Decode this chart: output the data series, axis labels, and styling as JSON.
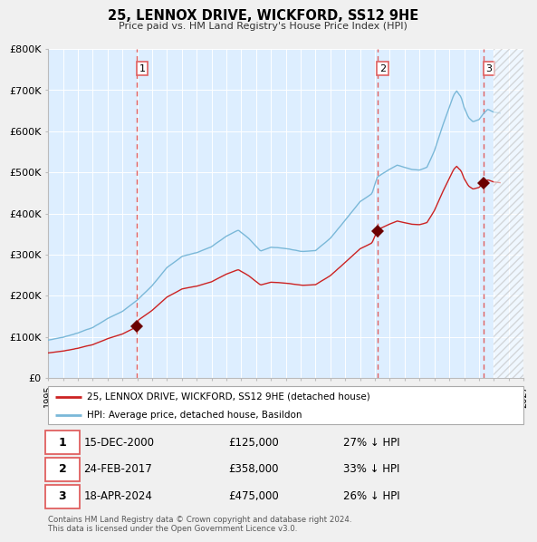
{
  "title": "25, LENNOX DRIVE, WICKFORD, SS12 9HE",
  "subtitle": "Price paid vs. HM Land Registry's House Price Index (HPI)",
  "xlim": [
    1995.0,
    2027.0
  ],
  "ylim": [
    0,
    800000
  ],
  "yticks": [
    0,
    100000,
    200000,
    300000,
    400000,
    500000,
    600000,
    700000,
    800000
  ],
  "ytick_labels": [
    "£0",
    "£100K",
    "£200K",
    "£300K",
    "£400K",
    "£500K",
    "£600K",
    "£700K",
    "£800K"
  ],
  "hpi_color": "#7ab8d8",
  "price_color": "#cc2222",
  "sale_marker_color": "#6b0000",
  "dashed_line_color": "#e06060",
  "bg_color": "#ddeeff",
  "plot_bg": "#ddeeff",
  "grid_color": "#ffffff",
  "fig_bg": "#f0f0f0",
  "sale_events": [
    {
      "label": "1",
      "date_str": "15-DEC-2000",
      "year": 2000.96,
      "price": 125000,
      "hpi_pct": "27% ↓ HPI"
    },
    {
      "label": "2",
      "date_str": "24-FEB-2017",
      "year": 2017.15,
      "price": 358000,
      "hpi_pct": "33% ↓ HPI"
    },
    {
      "label": "3",
      "date_str": "18-APR-2024",
      "year": 2024.3,
      "price": 475000,
      "hpi_pct": "26% ↓ HPI"
    }
  ],
  "legend_line1": "25, LENNOX DRIVE, WICKFORD, SS12 9HE (detached house)",
  "legend_line2": "HPI: Average price, detached house, Basildon",
  "footnote": "Contains HM Land Registry data © Crown copyright and database right 2024.\nThis data is licensed under the Open Government Licence v3.0.",
  "hatch_start": 2025.0,
  "hatch_end": 2027.0
}
